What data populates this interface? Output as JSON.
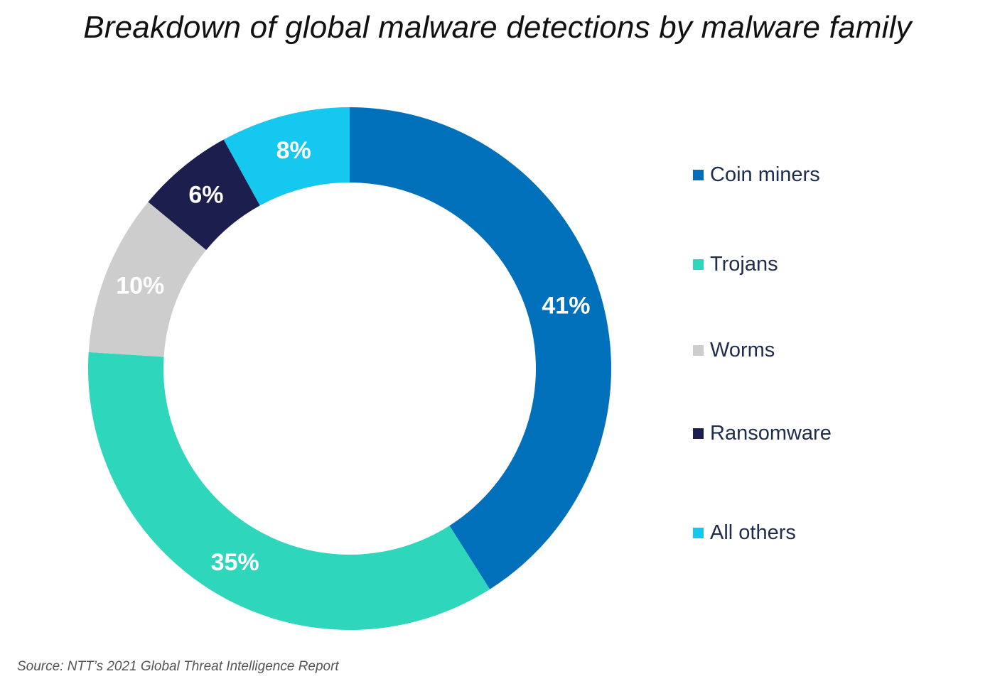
{
  "chart_data": {
    "type": "pie",
    "title": "Breakdown of global malware detections by malware family",
    "categories": [
      "Coin miners",
      "Trojans",
      "Worms",
      "Ransomware",
      "All others"
    ],
    "values": [
      41,
      35,
      10,
      6,
      8
    ],
    "labels": [
      "41%",
      "35%",
      "10%",
      "6%",
      "8%"
    ],
    "colors": [
      "#0070ba",
      "#2ed6bb",
      "#cdcdcd",
      "#1c1e4e",
      "#14c8ef"
    ],
    "legend": "right",
    "donut": true
  },
  "source": "Source: NTT’s 2021 Global Threat Intelligence Report"
}
